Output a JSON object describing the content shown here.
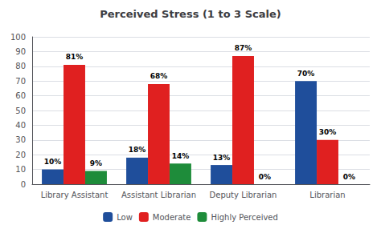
{
  "chart_data": {
    "type": "bar",
    "title": "Perceived Stress (1 to 3 Scale)",
    "categories": [
      "Library Assistant",
      "Assistant Librarian",
      "Deputy Librarian",
      "Librarian"
    ],
    "series": [
      {
        "name": "Low",
        "color": "#1F4E9B",
        "values": [
          10,
          18,
          13,
          70
        ],
        "value_labels": [
          "10%",
          "18%",
          "13%",
          "70%"
        ]
      },
      {
        "name": "Moderate",
        "color": "#E02020",
        "values": [
          81,
          68,
          87,
          30
        ],
        "value_labels": [
          "81%",
          "68%",
          "87%",
          "30%"
        ]
      },
      {
        "name": "Highly Perceived",
        "color": "#1E8C3A",
        "values": [
          9,
          14,
          0,
          0
        ],
        "value_labels": [
          "9%",
          "14%",
          "0%",
          "0%"
        ]
      }
    ],
    "ylim": [
      0,
      100
    ],
    "yticks": [
      0,
      10,
      20,
      30,
      40,
      50,
      60,
      70,
      80,
      90,
      100
    ],
    "grid": true,
    "legend": "bottom",
    "data_labels": true
  }
}
